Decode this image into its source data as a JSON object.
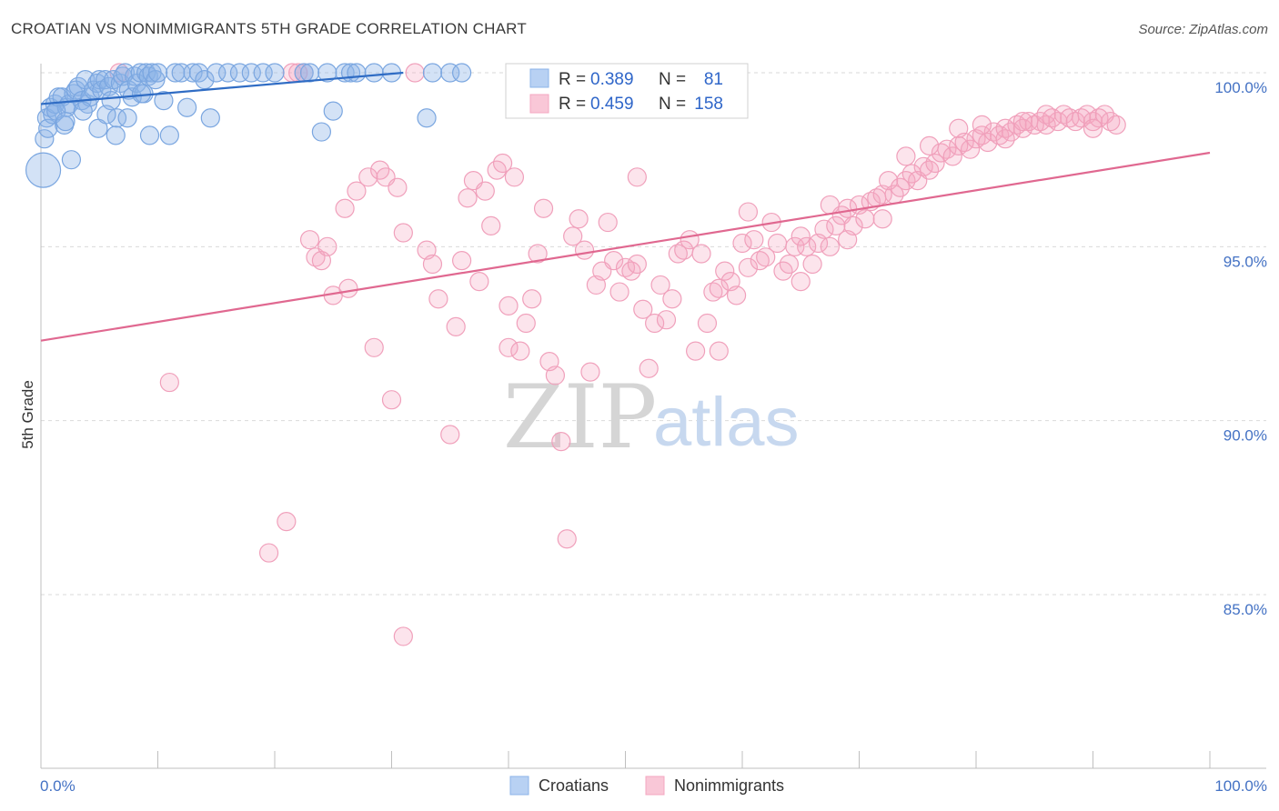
{
  "title": "CROATIAN VS NONIMMIGRANTS 5TH GRADE CORRELATION CHART",
  "source": "Source: ZipAtlas.com",
  "watermark": {
    "zip": "ZIP",
    "atlas": "atlas"
  },
  "colors": {
    "croatians": "#8cb4e8",
    "croatians_line": "#2f6cc4",
    "nonimmigrants": "#f4a7c0",
    "nonimmigrants_line": "#e06890",
    "grid": "#d9d9d9",
    "axis_label": "#4472c4"
  },
  "legend": {
    "croatians": {
      "r_label": "R =",
      "r_value": "0.389",
      "n_label": "N =",
      "n_value": "81"
    },
    "nonimmigrants": {
      "r_label": "R =",
      "r_value": "0.459",
      "n_label": "N =",
      "n_value": "158"
    }
  },
  "bottom_legend": [
    "Croatians",
    "Nonimmigrants"
  ],
  "chart_data": {
    "type": "scatter",
    "title": "CROATIAN VS NONIMMIGRANTS 5TH GRADE CORRELATION CHART",
    "xlabel": "",
    "ylabel": "5th Grade",
    "xlim": [
      0,
      100
    ],
    "ylim": [
      80.5,
      100.8
    ],
    "x_tick_labels": [
      "0.0%",
      "100.0%"
    ],
    "y_ticks": [
      85,
      90,
      95,
      100
    ],
    "y_tick_labels": [
      "85.0%",
      "90.0%",
      "95.0%",
      "100.0%"
    ],
    "series": [
      {
        "name": "Croatians",
        "r": 0.389,
        "n": 81,
        "trend": {
          "x": [
            0,
            31
          ],
          "y": [
            99.1,
            100.0
          ]
        },
        "points": [
          [
            0.2,
            97.2
          ],
          [
            0.3,
            98.1
          ],
          [
            0.5,
            98.7
          ],
          [
            0.6,
            98.4
          ],
          [
            0.8,
            99.0
          ],
          [
            1.0,
            98.8
          ],
          [
            1.2,
            99.1
          ],
          [
            1.5,
            99.3
          ],
          [
            1.8,
            99.3
          ],
          [
            2.0,
            98.5
          ],
          [
            2.2,
            99.0
          ],
          [
            2.4,
            99.1
          ],
          [
            2.6,
            97.5
          ],
          [
            2.8,
            99.4
          ],
          [
            3.0,
            99.5
          ],
          [
            3.2,
            99.6
          ],
          [
            3.5,
            99.2
          ],
          [
            3.8,
            99.8
          ],
          [
            4.0,
            99.1
          ],
          [
            4.2,
            99.3
          ],
          [
            4.5,
            99.5
          ],
          [
            4.8,
            99.7
          ],
          [
            5.0,
            99.8
          ],
          [
            5.2,
            99.5
          ],
          [
            5.5,
            99.8
          ],
          [
            5.8,
            99.6
          ],
          [
            6.0,
            99.2
          ],
          [
            6.2,
            99.8
          ],
          [
            6.5,
            98.7
          ],
          [
            6.8,
            99.7
          ],
          [
            7.0,
            99.9
          ],
          [
            7.2,
            100.0
          ],
          [
            7.5,
            99.5
          ],
          [
            7.8,
            99.3
          ],
          [
            8.0,
            99.9
          ],
          [
            8.2,
            99.7
          ],
          [
            8.5,
            100.0
          ],
          [
            8.8,
            99.4
          ],
          [
            9.0,
            100.0
          ],
          [
            9.2,
            99.9
          ],
          [
            9.5,
            100.0
          ],
          [
            9.8,
            99.8
          ],
          [
            10.0,
            100.0
          ],
          [
            10.5,
            99.2
          ],
          [
            11.0,
            98.2
          ],
          [
            11.5,
            100.0
          ],
          [
            12.0,
            100.0
          ],
          [
            12.5,
            99.0
          ],
          [
            13.0,
            100.0
          ],
          [
            13.5,
            100.0
          ],
          [
            14.0,
            99.8
          ],
          [
            14.5,
            98.7
          ],
          [
            15.0,
            100.0
          ],
          [
            16.0,
            100.0
          ],
          [
            17.0,
            100.0
          ],
          [
            18.0,
            100.0
          ],
          [
            19.0,
            100.0
          ],
          [
            20.0,
            100.0
          ],
          [
            22.5,
            100.0
          ],
          [
            23.0,
            100.0
          ],
          [
            24.0,
            98.3
          ],
          [
            24.5,
            100.0
          ],
          [
            25.0,
            98.9
          ],
          [
            26.0,
            100.0
          ],
          [
            26.5,
            100.0
          ],
          [
            27.0,
            100.0
          ],
          [
            28.5,
            100.0
          ],
          [
            30.0,
            100.0
          ],
          [
            33.0,
            98.7
          ],
          [
            33.5,
            100.0
          ],
          [
            35.0,
            100.0
          ],
          [
            36.0,
            100.0
          ],
          [
            1.3,
            98.9
          ],
          [
            2.1,
            98.6
          ],
          [
            4.9,
            98.4
          ],
          [
            6.4,
            98.2
          ],
          [
            7.4,
            98.7
          ],
          [
            9.3,
            98.2
          ],
          [
            3.6,
            98.9
          ],
          [
            5.6,
            98.8
          ],
          [
            8.6,
            99.4
          ]
        ]
      },
      {
        "name": "Nonimmigrants",
        "r": 0.459,
        "n": 158,
        "trend": {
          "x": [
            0,
            100
          ],
          "y": [
            92.3,
            97.7
          ]
        },
        "points": [
          [
            6.7,
            100.0
          ],
          [
            11.0,
            91.1
          ],
          [
            19.5,
            86.2
          ],
          [
            21.0,
            87.1
          ],
          [
            21.5,
            100.0
          ],
          [
            22.0,
            100.0
          ],
          [
            22.5,
            100.0
          ],
          [
            23.0,
            95.2
          ],
          [
            23.5,
            94.7
          ],
          [
            24.0,
            94.6
          ],
          [
            24.5,
            95.0
          ],
          [
            25.0,
            93.6
          ],
          [
            26.0,
            96.1
          ],
          [
            26.3,
            93.8
          ],
          [
            27.0,
            96.6
          ],
          [
            28.0,
            97.0
          ],
          [
            28.5,
            92.1
          ],
          [
            29.0,
            97.2
          ],
          [
            29.5,
            97.0
          ],
          [
            30.0,
            90.6
          ],
          [
            30.5,
            96.7
          ],
          [
            31.0,
            95.4
          ],
          [
            32.0,
            100.0
          ],
          [
            33.0,
            94.9
          ],
          [
            33.5,
            94.5
          ],
          [
            34.0,
            93.5
          ],
          [
            35.0,
            89.6
          ],
          [
            35.5,
            92.7
          ],
          [
            36.0,
            94.6
          ],
          [
            36.5,
            96.4
          ],
          [
            37.0,
            96.9
          ],
          [
            37.5,
            94.0
          ],
          [
            38.0,
            96.6
          ],
          [
            38.5,
            95.6
          ],
          [
            39.0,
            97.2
          ],
          [
            39.5,
            97.4
          ],
          [
            40.0,
            92.1
          ],
          [
            40.5,
            97.0
          ],
          [
            41.0,
            92.0
          ],
          [
            41.5,
            92.8
          ],
          [
            42.0,
            93.5
          ],
          [
            42.5,
            94.8
          ],
          [
            43.0,
            96.1
          ],
          [
            43.5,
            91.7
          ],
          [
            44.0,
            91.3
          ],
          [
            44.5,
            89.4
          ],
          [
            45.0,
            86.6
          ],
          [
            45.5,
            95.3
          ],
          [
            46.0,
            95.8
          ],
          [
            46.5,
            94.9
          ],
          [
            47.0,
            91.4
          ],
          [
            47.5,
            93.9
          ],
          [
            48.0,
            94.3
          ],
          [
            48.5,
            95.7
          ],
          [
            49.0,
            94.6
          ],
          [
            49.5,
            93.7
          ],
          [
            50.0,
            94.4
          ],
          [
            50.5,
            94.3
          ],
          [
            51.0,
            94.5
          ],
          [
            51.5,
            93.2
          ],
          [
            52.0,
            91.5
          ],
          [
            52.5,
            92.8
          ],
          [
            53.0,
            93.9
          ],
          [
            53.5,
            92.9
          ],
          [
            54.0,
            93.5
          ],
          [
            54.5,
            94.8
          ],
          [
            55.0,
            94.9
          ],
          [
            55.5,
            95.2
          ],
          [
            56.0,
            92.0
          ],
          [
            56.5,
            94.8
          ],
          [
            57.0,
            92.8
          ],
          [
            57.5,
            93.7
          ],
          [
            58.0,
            93.8
          ],
          [
            58.5,
            94.3
          ],
          [
            59.0,
            94.0
          ],
          [
            59.5,
            93.6
          ],
          [
            60.0,
            95.1
          ],
          [
            60.5,
            94.4
          ],
          [
            61.0,
            95.2
          ],
          [
            61.5,
            94.6
          ],
          [
            62.0,
            94.7
          ],
          [
            62.5,
            95.7
          ],
          [
            63.0,
            95.1
          ],
          [
            63.5,
            94.3
          ],
          [
            64.0,
            94.5
          ],
          [
            64.5,
            95.0
          ],
          [
            65.0,
            95.3
          ],
          [
            65.5,
            95.0
          ],
          [
            66.0,
            94.5
          ],
          [
            66.5,
            95.1
          ],
          [
            67.0,
            95.5
          ],
          [
            67.5,
            95.0
          ],
          [
            68.0,
            95.6
          ],
          [
            68.5,
            95.9
          ],
          [
            69.0,
            96.1
          ],
          [
            69.5,
            95.6
          ],
          [
            70.0,
            96.2
          ],
          [
            70.5,
            95.8
          ],
          [
            71.0,
            96.3
          ],
          [
            71.5,
            96.4
          ],
          [
            72.0,
            96.5
          ],
          [
            72.5,
            96.9
          ],
          [
            73.0,
            96.5
          ],
          [
            73.5,
            96.7
          ],
          [
            74.0,
            96.9
          ],
          [
            74.5,
            97.1
          ],
          [
            75.0,
            96.9
          ],
          [
            75.5,
            97.3
          ],
          [
            76.0,
            97.2
          ],
          [
            76.5,
            97.4
          ],
          [
            77.0,
            97.7
          ],
          [
            77.5,
            97.8
          ],
          [
            78.0,
            97.6
          ],
          [
            78.5,
            97.9
          ],
          [
            79.0,
            98.0
          ],
          [
            79.5,
            97.8
          ],
          [
            80.0,
            98.1
          ],
          [
            80.5,
            98.2
          ],
          [
            81.0,
            98.0
          ],
          [
            81.5,
            98.3
          ],
          [
            82.0,
            98.2
          ],
          [
            82.5,
            98.4
          ],
          [
            83.0,
            98.3
          ],
          [
            83.5,
            98.5
          ],
          [
            84.0,
            98.4
          ],
          [
            84.5,
            98.6
          ],
          [
            85.0,
            98.5
          ],
          [
            85.5,
            98.6
          ],
          [
            86.0,
            98.5
          ],
          [
            86.5,
            98.7
          ],
          [
            87.0,
            98.6
          ],
          [
            87.5,
            98.8
          ],
          [
            88.0,
            98.7
          ],
          [
            88.5,
            98.6
          ],
          [
            89.0,
            98.7
          ],
          [
            89.5,
            98.8
          ],
          [
            90.0,
            98.6
          ],
          [
            90.5,
            98.7
          ],
          [
            91.0,
            98.8
          ],
          [
            91.5,
            98.6
          ],
          [
            92.0,
            98.5
          ],
          [
            31.0,
            83.8
          ],
          [
            40.0,
            93.3
          ],
          [
            58.0,
            92.0
          ],
          [
            65.0,
            94.0
          ],
          [
            72.0,
            95.8
          ],
          [
            67.5,
            96.2
          ],
          [
            51.0,
            97.0
          ],
          [
            60.5,
            96.0
          ],
          [
            69.0,
            95.2
          ],
          [
            78.5,
            98.4
          ],
          [
            74.0,
            97.6
          ],
          [
            84.0,
            98.6
          ],
          [
            90.0,
            98.4
          ],
          [
            86.0,
            98.8
          ],
          [
            76.0,
            97.9
          ],
          [
            80.5,
            98.5
          ],
          [
            82.5,
            98.1
          ]
        ]
      }
    ]
  }
}
